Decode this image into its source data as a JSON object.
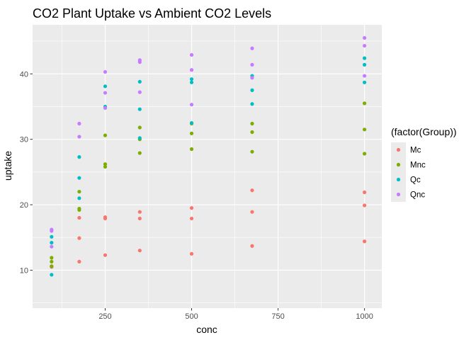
{
  "chart_data": {
    "type": "scatter",
    "title": "CO2 Plant Uptake vs Ambient CO2 Levels",
    "xlabel": "conc",
    "ylabel": "uptake",
    "xlim": [
      40,
      1050
    ],
    "ylim": [
      4.2,
      47.5
    ],
    "x_ticks": [
      250,
      500,
      750,
      1000
    ],
    "y_ticks": [
      10,
      20,
      30,
      40
    ],
    "grid": true,
    "legend": {
      "title": "(factor(Group))",
      "position": "right"
    },
    "series": [
      {
        "name": "Mc",
        "color": "#F8766D",
        "x": [
          95,
          95,
          175,
          175,
          175,
          250,
          250,
          250,
          350,
          350,
          350,
          500,
          500,
          500,
          675,
          675,
          675,
          1000,
          1000,
          1000
        ],
        "y": [
          10.6,
          10.5,
          18.0,
          14.9,
          11.3,
          17.9,
          18.1,
          12.3,
          17.9,
          18.9,
          13.0,
          17.9,
          19.5,
          12.5,
          18.9,
          22.2,
          13.7,
          19.9,
          21.9,
          14.4
        ]
      },
      {
        "name": "Mnc",
        "color": "#7CAE00",
        "x": [
          95,
          95,
          95,
          175,
          175,
          175,
          250,
          250,
          250,
          350,
          350,
          350,
          500,
          500,
          500,
          675,
          675,
          675,
          1000,
          1000,
          1000
        ],
        "y": [
          11.3,
          11.9,
          10.6,
          19.2,
          22.0,
          19.4,
          26.2,
          30.6,
          25.8,
          30.0,
          31.8,
          27.9,
          30.9,
          32.4,
          28.5,
          32.4,
          31.1,
          28.1,
          35.5,
          31.5,
          27.8
        ]
      },
      {
        "name": "Qc",
        "color": "#00BFC4",
        "x": [
          95,
          95,
          95,
          175,
          175,
          175,
          250,
          250,
          250,
          350,
          350,
          350,
          500,
          500,
          500,
          675,
          675,
          675,
          1000,
          1000,
          1000
        ],
        "y": [
          14.2,
          9.3,
          15.1,
          24.1,
          27.3,
          21.0,
          34.8,
          35.0,
          38.1,
          30.2,
          34.6,
          38.8,
          39.2,
          38.7,
          32.5,
          35.4,
          37.5,
          39.7,
          38.7,
          41.4,
          42.4
        ]
      },
      {
        "name": "Qnc",
        "color": "#C77CFF",
        "x": [
          95,
          95,
          95,
          175,
          175,
          250,
          250,
          250,
          350,
          350,
          350,
          500,
          500,
          500,
          675,
          675,
          675,
          1000,
          1000,
          1000
        ],
        "y": [
          16.0,
          13.6,
          16.2,
          32.4,
          30.4,
          34.8,
          37.1,
          40.3,
          37.2,
          41.8,
          42.1,
          35.3,
          40.6,
          42.9,
          39.4,
          41.4,
          43.9,
          39.7,
          44.3,
          45.5
        ]
      }
    ]
  }
}
